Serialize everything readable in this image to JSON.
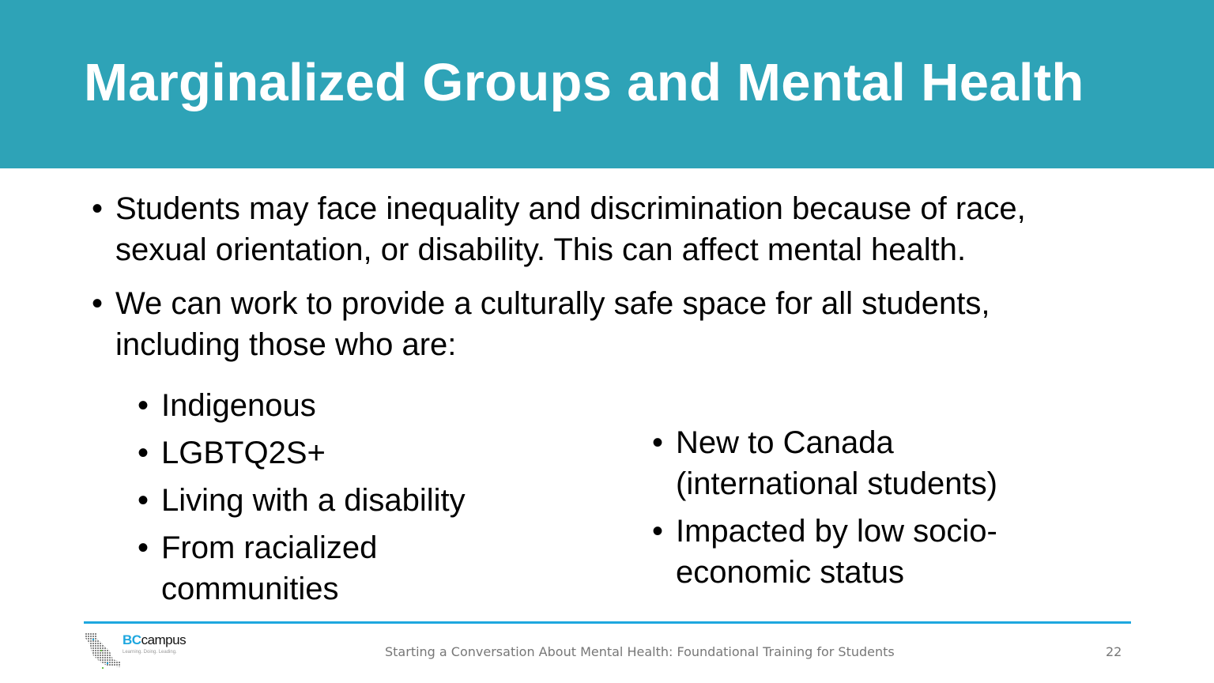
{
  "slide": {
    "title": "Marginalized Groups and Mental Health",
    "bullets": [
      {
        "line1": "Students may face inequality and discrimination because of race,",
        "line2": "sexual orientation, or disability. This can affect mental health."
      },
      {
        "line1": "We can work to provide a culturally safe space for all students,",
        "line2": "including those who are:"
      }
    ],
    "sub_left": [
      "Indigenous",
      "LGBTQ2S+",
      "Living with a disability",
      "From racialized",
      "communities"
    ],
    "sub_right": [
      {
        "line1": "New to Canada",
        "line2": "(international students)"
      },
      {
        "line1": "Impacted by low socio-",
        "line2": "economic status"
      }
    ],
    "bullet_char": "•"
  },
  "footer": {
    "logo_bc": "BC",
    "logo_campus": "campus",
    "logo_tagline": "Learning. Doing. Leading.",
    "text": "Starting a Conversation About Mental Health: Foundational Training for Students",
    "page_number": "22"
  },
  "colors": {
    "header": "#2ea3b7",
    "rule": "#1ea7df"
  }
}
